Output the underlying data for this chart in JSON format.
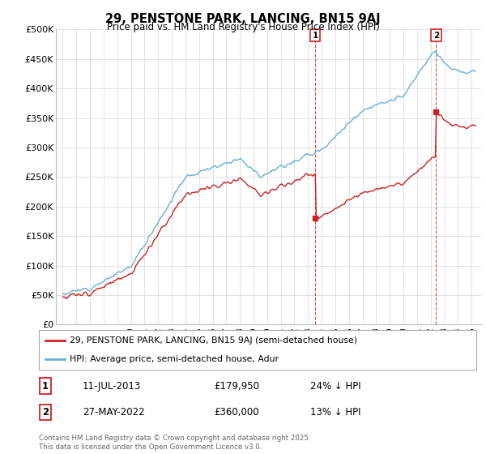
{
  "title": "29, PENSTONE PARK, LANCING, BN15 9AJ",
  "subtitle": "Price paid vs. HM Land Registry's House Price Index (HPI)",
  "ylabel_ticks": [
    "£0",
    "£50K",
    "£100K",
    "£150K",
    "£200K",
    "£250K",
    "£300K",
    "£350K",
    "£400K",
    "£450K",
    "£500K"
  ],
  "ytick_values": [
    0,
    50000,
    100000,
    150000,
    200000,
    250000,
    300000,
    350000,
    400000,
    450000,
    500000
  ],
  "ylim": [
    0,
    500000
  ],
  "hpi_color": "#6baed6",
  "price_color": "#cc2222",
  "legend1_label": "29, PENSTONE PARK, LANCING, BN15 9AJ (semi-detached house)",
  "legend2_label": "HPI: Average price, semi-detached house, Adur",
  "annotation1_num": "1",
  "annotation1_date": "11-JUL-2013",
  "annotation1_price": "£179,950",
  "annotation1_hpi": "24% ↓ HPI",
  "annotation2_num": "2",
  "annotation2_date": "27-MAY-2022",
  "annotation2_price": "£360,000",
  "annotation2_hpi": "13% ↓ HPI",
  "footer": "Contains HM Land Registry data © Crown copyright and database right 2025.\nThis data is licensed under the Open Government Licence v3.0.",
  "bg_color": "#ffffff",
  "plot_bg_color": "#ffffff",
  "grid_color": "#dddddd",
  "purchase1_year": 1995.5,
  "purchase1_price": 47000,
  "purchase2_year": 2013.53,
  "purchase2_price": 179950,
  "purchase3_year": 2022.4,
  "purchase3_price": 360000
}
